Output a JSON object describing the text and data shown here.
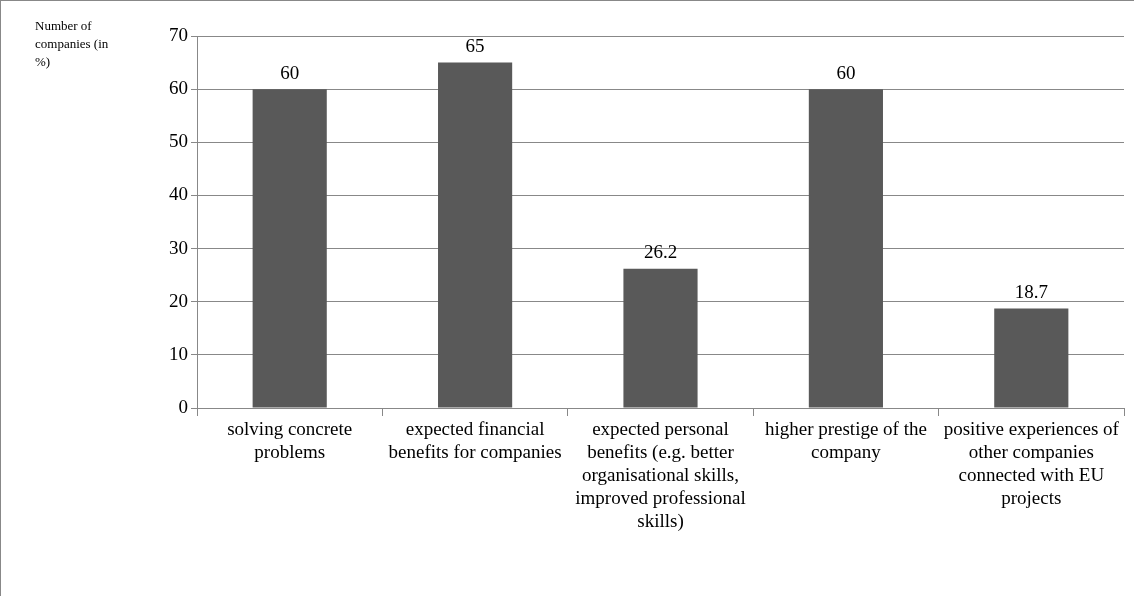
{
  "chart_data": {
    "type": "bar",
    "ylabel": "Number of companies (in %)",
    "categories": [
      "solving concrete problems",
      "expected financial benefits for companies",
      "expected personal benefits (e.g. better organisational skills, improved professional skills)",
      "higher prestige of the company",
      "positive experiences of other companies connected with EU projects"
    ],
    "values": [
      60,
      65,
      26.2,
      60,
      18.7
    ],
    "color": "#595959",
    "ylim": [
      0,
      70
    ],
    "yticks": [
      0,
      10,
      20,
      30,
      40,
      50,
      60,
      70
    ],
    "grid": "y",
    "data_labels": true
  }
}
